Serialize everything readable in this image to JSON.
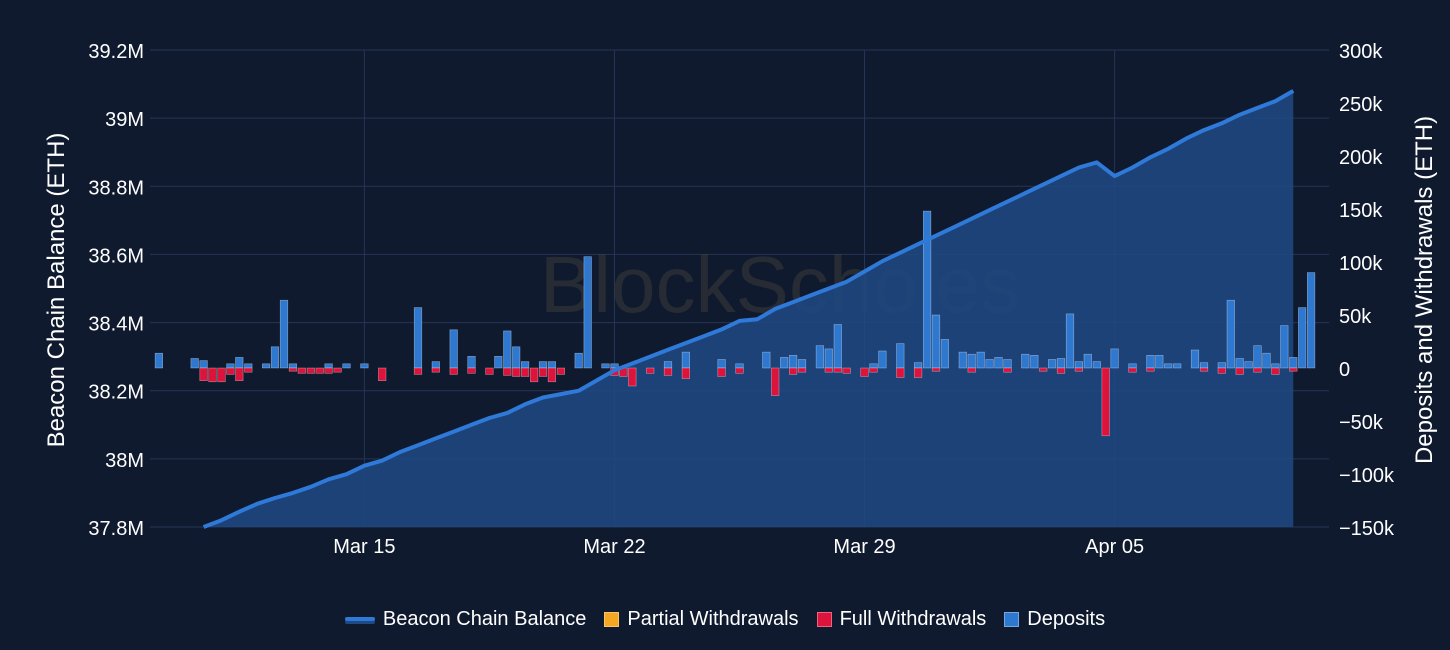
{
  "watermark": "BlockScholes",
  "colors": {
    "background": "#0f1a2e",
    "balance_line": "#2f7ad8",
    "balance_fill": "#1f4a85",
    "partial_withdrawals": "#f5a623",
    "full_withdrawals": "#dc143c",
    "deposits": "#2f78d0",
    "grid": "#263556",
    "text": "#ffffff"
  },
  "chart_data": {
    "type": "line+bar",
    "x_start": "2023-03-09",
    "x_end": "2023-04-11",
    "x_ticks": [
      {
        "date": "2023-03-15",
        "label": "Mar 15"
      },
      {
        "date": "2023-03-22",
        "label": "Mar 22"
      },
      {
        "date": "2023-03-29",
        "label": "Mar 29"
      },
      {
        "date": "2023-04-05",
        "label": "Apr 05"
      }
    ],
    "y_left": {
      "label": "Beacon Chain Balance (ETH)",
      "range": [
        37800000,
        39200000
      ],
      "ticks": [
        37800000,
        38000000,
        38200000,
        38400000,
        38600000,
        38800000,
        39000000,
        39200000
      ],
      "tick_labels": [
        "37.8M",
        "38M",
        "38.2M",
        "38.4M",
        "38.6M",
        "38.8M",
        "39M",
        "39.2M"
      ]
    },
    "y_right": {
      "label": "Deposits and Withdrawals (ETH)",
      "range": [
        -150000,
        300000
      ],
      "ticks": [
        -150000,
        -100000,
        -50000,
        0,
        50000,
        100000,
        150000,
        200000,
        250000,
        300000
      ],
      "tick_labels": [
        "−150k",
        "−100k",
        "−50k",
        "0",
        "50k",
        "100k",
        "150k",
        "200k",
        "250k",
        "300k"
      ]
    },
    "grid": true,
    "legend_position": "bottom-center",
    "series": [
      {
        "name": "Beacon Chain Balance",
        "kind": "area-line",
        "axis": "left",
        "points": [
          [
            "2023-03-10 12:00",
            37800000
          ],
          [
            "2023-03-11 00:00",
            37820000
          ],
          [
            "2023-03-11 12:00",
            37845000
          ],
          [
            "2023-03-12 00:00",
            37868000
          ],
          [
            "2023-03-12 12:00",
            37885000
          ],
          [
            "2023-03-13 00:00",
            37900000
          ],
          [
            "2023-03-13 12:00",
            37918000
          ],
          [
            "2023-03-14 00:00",
            37940000
          ],
          [
            "2023-03-14 12:00",
            37955000
          ],
          [
            "2023-03-15 00:00",
            37980000
          ],
          [
            "2023-03-15 12:00",
            37995000
          ],
          [
            "2023-03-16 00:00",
            38020000
          ],
          [
            "2023-03-16 12:00",
            38040000
          ],
          [
            "2023-03-17 00:00",
            38060000
          ],
          [
            "2023-03-17 12:00",
            38080000
          ],
          [
            "2023-03-18 00:00",
            38100000
          ],
          [
            "2023-03-18 12:00",
            38120000
          ],
          [
            "2023-03-19 00:00",
            38135000
          ],
          [
            "2023-03-19 12:00",
            38160000
          ],
          [
            "2023-03-20 00:00",
            38180000
          ],
          [
            "2023-03-20 12:00",
            38190000
          ],
          [
            "2023-03-21 00:00",
            38200000
          ],
          [
            "2023-03-21 12:00",
            38230000
          ],
          [
            "2023-03-22 00:00",
            38260000
          ],
          [
            "2023-03-22 12:00",
            38280000
          ],
          [
            "2023-03-23 00:00",
            38300000
          ],
          [
            "2023-03-23 12:00",
            38320000
          ],
          [
            "2023-03-24 00:00",
            38340000
          ],
          [
            "2023-03-24 12:00",
            38360000
          ],
          [
            "2023-03-25 00:00",
            38380000
          ],
          [
            "2023-03-25 12:00",
            38405000
          ],
          [
            "2023-03-26 00:00",
            38410000
          ],
          [
            "2023-03-26 12:00",
            38440000
          ],
          [
            "2023-03-27 00:00",
            38460000
          ],
          [
            "2023-03-27 12:00",
            38480000
          ],
          [
            "2023-03-28 00:00",
            38500000
          ],
          [
            "2023-03-28 12:00",
            38520000
          ],
          [
            "2023-03-29 00:00",
            38550000
          ],
          [
            "2023-03-29 12:00",
            38580000
          ],
          [
            "2023-03-30 00:00",
            38605000
          ],
          [
            "2023-03-30 12:00",
            38630000
          ],
          [
            "2023-03-31 00:00",
            38655000
          ],
          [
            "2023-03-31 12:00",
            38680000
          ],
          [
            "2023-04-01 00:00",
            38705000
          ],
          [
            "2023-04-01 12:00",
            38730000
          ],
          [
            "2023-04-02 00:00",
            38755000
          ],
          [
            "2023-04-02 12:00",
            38780000
          ],
          [
            "2023-04-03 00:00",
            38805000
          ],
          [
            "2023-04-03 12:00",
            38830000
          ],
          [
            "2023-04-04 00:00",
            38855000
          ],
          [
            "2023-04-04 12:00",
            38870000
          ],
          [
            "2023-04-05 00:00",
            38830000
          ],
          [
            "2023-04-05 12:00",
            38855000
          ],
          [
            "2023-04-06 00:00",
            38885000
          ],
          [
            "2023-04-06 12:00",
            38910000
          ],
          [
            "2023-04-07 00:00",
            38940000
          ],
          [
            "2023-04-07 12:00",
            38965000
          ],
          [
            "2023-04-08 00:00",
            38985000
          ],
          [
            "2023-04-08 12:00",
            39010000
          ],
          [
            "2023-04-09 00:00",
            39030000
          ],
          [
            "2023-04-09 12:00",
            39050000
          ],
          [
            "2023-04-10 00:00",
            39080000
          ]
        ]
      },
      {
        "name": "Partial Withdrawals",
        "kind": "bar",
        "axis": "right",
        "points": []
      },
      {
        "name": "Full Withdrawals",
        "kind": "bar",
        "axis": "right",
        "points": [
          [
            "2023-03-10 12:00",
            -12000
          ],
          [
            "2023-03-10 18:00",
            -13000
          ],
          [
            "2023-03-11 00:00",
            -13000
          ],
          [
            "2023-03-11 06:00",
            -6000
          ],
          [
            "2023-03-11 12:00",
            -12000
          ],
          [
            "2023-03-11 18:00",
            -4000
          ],
          [
            "2023-03-13 00:00",
            -3000
          ],
          [
            "2023-03-13 06:00",
            -5000
          ],
          [
            "2023-03-13 12:00",
            -5000
          ],
          [
            "2023-03-13 18:00",
            -5000
          ],
          [
            "2023-03-14 00:00",
            -5000
          ],
          [
            "2023-03-14 06:00",
            -4000
          ],
          [
            "2023-03-15 12:00",
            -12000
          ],
          [
            "2023-03-16 12:00",
            -6000
          ],
          [
            "2023-03-17 00:00",
            -4000
          ],
          [
            "2023-03-17 12:00",
            -6000
          ],
          [
            "2023-03-18 00:00",
            -5000
          ],
          [
            "2023-03-18 12:00",
            -6000
          ],
          [
            "2023-03-19 00:00",
            -7000
          ],
          [
            "2023-03-19 06:00",
            -8000
          ],
          [
            "2023-03-19 12:00",
            -8000
          ],
          [
            "2023-03-19 18:00",
            -13000
          ],
          [
            "2023-03-20 00:00",
            -8000
          ],
          [
            "2023-03-20 06:00",
            -13000
          ],
          [
            "2023-03-20 12:00",
            -6000
          ],
          [
            "2023-03-22 00:00",
            -7000
          ],
          [
            "2023-03-22 06:00",
            -8000
          ],
          [
            "2023-03-22 12:00",
            -17000
          ],
          [
            "2023-03-23 00:00",
            -5000
          ],
          [
            "2023-03-23 12:00",
            -7000
          ],
          [
            "2023-03-24 00:00",
            -10000
          ],
          [
            "2023-03-25 00:00",
            -8000
          ],
          [
            "2023-03-25 12:00",
            -5000
          ],
          [
            "2023-03-26 12:00",
            -26000
          ],
          [
            "2023-03-27 00:00",
            -6000
          ],
          [
            "2023-03-27 06:00",
            -4000
          ],
          [
            "2023-03-28 00:00",
            -4000
          ],
          [
            "2023-03-28 06:00",
            -4000
          ],
          [
            "2023-03-28 12:00",
            -5000
          ],
          [
            "2023-03-29 00:00",
            -8000
          ],
          [
            "2023-03-29 06:00",
            -4000
          ],
          [
            "2023-03-30 00:00",
            -9000
          ],
          [
            "2023-03-30 12:00",
            -9000
          ],
          [
            "2023-03-31 00:00",
            -3000
          ],
          [
            "2023-04-01 00:00",
            -4000
          ],
          [
            "2023-04-02 00:00",
            -4000
          ],
          [
            "2023-04-03 00:00",
            -3000
          ],
          [
            "2023-04-03 12:00",
            -5000
          ],
          [
            "2023-04-04 00:00",
            -3000
          ],
          [
            "2023-04-04 18:00",
            -64000
          ],
          [
            "2023-04-05 12:00",
            -4000
          ],
          [
            "2023-04-06 00:00",
            -3000
          ],
          [
            "2023-04-07 12:00",
            -3000
          ],
          [
            "2023-04-08 00:00",
            -5000
          ],
          [
            "2023-04-08 12:00",
            -6000
          ],
          [
            "2023-04-09 00:00",
            -4000
          ],
          [
            "2023-04-09 12:00",
            -6000
          ],
          [
            "2023-04-10 00:00",
            -3000
          ]
        ]
      },
      {
        "name": "Deposits",
        "kind": "bar",
        "axis": "right",
        "points": [
          [
            "2023-03-09 06:00",
            14000
          ],
          [
            "2023-03-10 06:00",
            9000
          ],
          [
            "2023-03-10 12:00",
            7000
          ],
          [
            "2023-03-11 06:00",
            4000
          ],
          [
            "2023-03-11 12:00",
            10000
          ],
          [
            "2023-03-11 18:00",
            4000
          ],
          [
            "2023-03-12 06:00",
            4000
          ],
          [
            "2023-03-12 12:00",
            20000
          ],
          [
            "2023-03-12 18:00",
            64000
          ],
          [
            "2023-03-13 00:00",
            4000
          ],
          [
            "2023-03-14 00:00",
            4000
          ],
          [
            "2023-03-14 12:00",
            4000
          ],
          [
            "2023-03-15 00:00",
            4000
          ],
          [
            "2023-03-16 12:00",
            57000
          ],
          [
            "2023-03-17 00:00",
            6000
          ],
          [
            "2023-03-17 12:00",
            36000
          ],
          [
            "2023-03-18 00:00",
            11000
          ],
          [
            "2023-03-18 18:00",
            11000
          ],
          [
            "2023-03-19 00:00",
            35000
          ],
          [
            "2023-03-19 06:00",
            20000
          ],
          [
            "2023-03-19 12:00",
            6000
          ],
          [
            "2023-03-20 00:00",
            6000
          ],
          [
            "2023-03-20 06:00",
            6000
          ],
          [
            "2023-03-21 00:00",
            14000
          ],
          [
            "2023-03-21 06:00",
            105000
          ],
          [
            "2023-03-21 18:00",
            4000
          ],
          [
            "2023-03-22 00:00",
            4000
          ],
          [
            "2023-03-23 12:00",
            6000
          ],
          [
            "2023-03-24 00:00",
            15000
          ],
          [
            "2023-03-25 00:00",
            8000
          ],
          [
            "2023-03-25 12:00",
            4000
          ],
          [
            "2023-03-26 06:00",
            15000
          ],
          [
            "2023-03-26 18:00",
            10000
          ],
          [
            "2023-03-27 00:00",
            12000
          ],
          [
            "2023-03-27 06:00",
            8000
          ],
          [
            "2023-03-27 18:00",
            21000
          ],
          [
            "2023-03-28 00:00",
            18000
          ],
          [
            "2023-03-28 06:00",
            41000
          ],
          [
            "2023-03-29 06:00",
            4000
          ],
          [
            "2023-03-29 12:00",
            16000
          ],
          [
            "2023-03-30 00:00",
            23000
          ],
          [
            "2023-03-30 12:00",
            5000
          ],
          [
            "2023-03-30 18:00",
            148000
          ],
          [
            "2023-03-31 00:00",
            50000
          ],
          [
            "2023-03-31 06:00",
            27000
          ],
          [
            "2023-03-31 18:00",
            15000
          ],
          [
            "2023-04-01 00:00",
            13000
          ],
          [
            "2023-04-01 06:00",
            15000
          ],
          [
            "2023-04-01 12:00",
            8000
          ],
          [
            "2023-04-01 18:00",
            10000
          ],
          [
            "2023-04-02 00:00",
            8000
          ],
          [
            "2023-04-02 12:00",
            13000
          ],
          [
            "2023-04-02 18:00",
            12000
          ],
          [
            "2023-04-03 06:00",
            8000
          ],
          [
            "2023-04-03 12:00",
            9000
          ],
          [
            "2023-04-03 18:00",
            51000
          ],
          [
            "2023-04-04 00:00",
            6000
          ],
          [
            "2023-04-04 06:00",
            13000
          ],
          [
            "2023-04-04 12:00",
            6000
          ],
          [
            "2023-04-05 00:00",
            18000
          ],
          [
            "2023-04-05 12:00",
            4000
          ],
          [
            "2023-04-06 00:00",
            12000
          ],
          [
            "2023-04-06 06:00",
            12000
          ],
          [
            "2023-04-06 12:00",
            4000
          ],
          [
            "2023-04-06 18:00",
            4000
          ],
          [
            "2023-04-07 06:00",
            17000
          ],
          [
            "2023-04-07 12:00",
            5000
          ],
          [
            "2023-04-08 00:00",
            5000
          ],
          [
            "2023-04-08 06:00",
            64000
          ],
          [
            "2023-04-08 12:00",
            9000
          ],
          [
            "2023-04-08 18:00",
            6000
          ],
          [
            "2023-04-09 00:00",
            21000
          ],
          [
            "2023-04-09 06:00",
            14000
          ],
          [
            "2023-04-09 12:00",
            4000
          ],
          [
            "2023-04-09 18:00",
            40000
          ],
          [
            "2023-04-10 00:00",
            10000
          ],
          [
            "2023-04-10 06:00",
            57000
          ],
          [
            "2023-04-10 12:00",
            90000
          ]
        ]
      }
    ]
  }
}
